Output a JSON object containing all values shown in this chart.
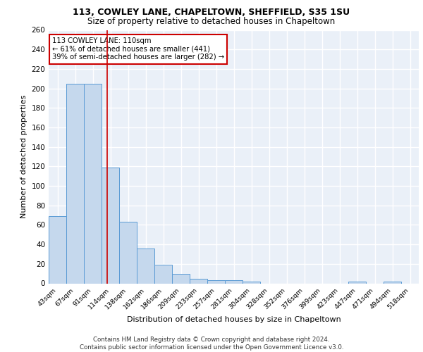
{
  "title1": "113, COWLEY LANE, CHAPELTOWN, SHEFFIELD, S35 1SU",
  "title2": "Size of property relative to detached houses in Chapeltown",
  "xlabel": "Distribution of detached houses by size in Chapeltown",
  "ylabel": "Number of detached properties",
  "bin_labels": [
    "43sqm",
    "67sqm",
    "91sqm",
    "114sqm",
    "138sqm",
    "162sqm",
    "186sqm",
    "209sqm",
    "233sqm",
    "257sqm",
    "281sqm",
    "304sqm",
    "328sqm",
    "352sqm",
    "376sqm",
    "399sqm",
    "423sqm",
    "447sqm",
    "471sqm",
    "494sqm",
    "518sqm"
  ],
  "bar_heights": [
    69,
    205,
    205,
    119,
    63,
    36,
    19,
    10,
    5,
    3,
    3,
    2,
    0,
    0,
    0,
    0,
    0,
    2,
    0,
    2,
    0
  ],
  "bar_color": "#c5d8ed",
  "bar_edge_color": "#5b9bd5",
  "background_color": "#eaf0f8",
  "grid_color": "#ffffff",
  "red_line_x": 2.83,
  "annotation_text": "113 COWLEY LANE: 110sqm\n← 61% of detached houses are smaller (441)\n39% of semi-detached houses are larger (282) →",
  "annotation_box_color": "#ffffff",
  "annotation_box_edge": "#cc0000",
  "footer_text": "Contains HM Land Registry data © Crown copyright and database right 2024.\nContains public sector information licensed under the Open Government Licence v3.0.",
  "ylim": [
    0,
    260
  ],
  "yticks": [
    0,
    20,
    40,
    60,
    80,
    100,
    120,
    140,
    160,
    180,
    200,
    220,
    240,
    260
  ]
}
